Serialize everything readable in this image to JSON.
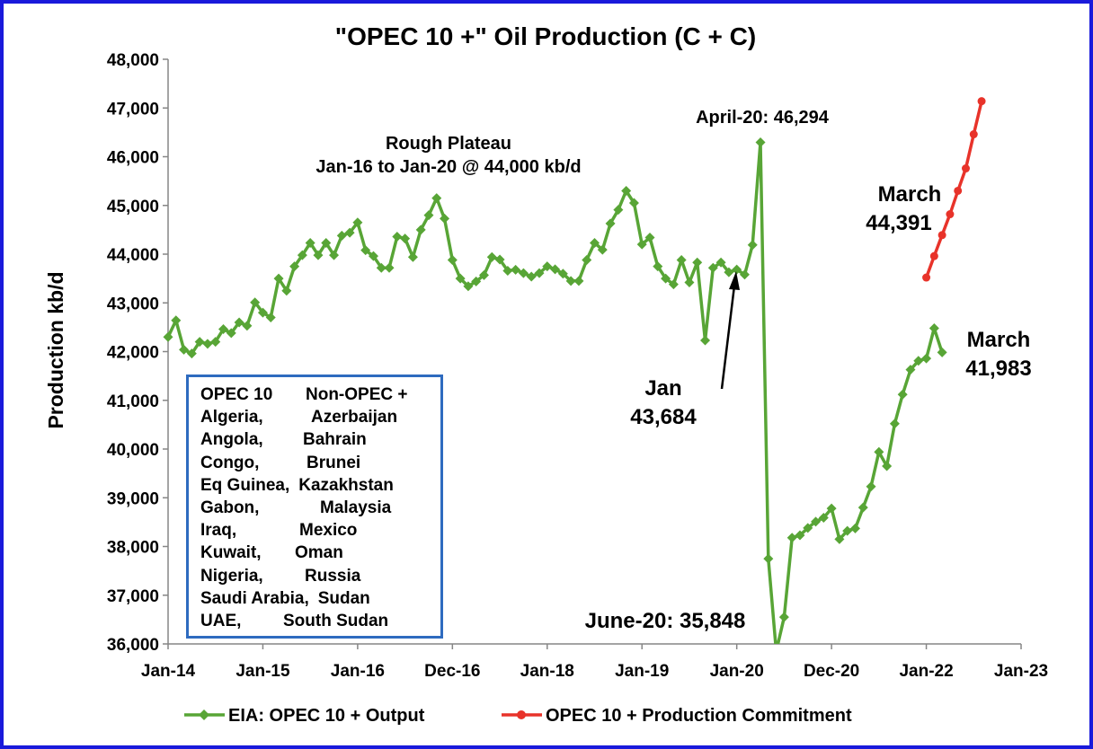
{
  "colors": {
    "frame": "#1a1adb",
    "output_series": "#58a536",
    "commitment_series": "#e8332a",
    "legend_border": "#2e6bbf"
  },
  "chart_data": {
    "type": "line",
    "title": "\"OPEC 10 +\" Oil Production (C + C)",
    "ylabel": "Production kb/d",
    "xlabel": "",
    "ylim": [
      36000,
      48000
    ],
    "yticks": [
      "36,000",
      "37,000",
      "38,000",
      "39,000",
      "40,000",
      "41,000",
      "42,000",
      "43,000",
      "44,000",
      "45,000",
      "46,000",
      "47,000",
      "48,000"
    ],
    "xticks": [
      "Jan-14",
      "Jan-15",
      "Jan-16",
      "Dec-16",
      "Jan-18",
      "Jan-19",
      "Jan-20",
      "Dec-20",
      "Jan-22",
      "Jan-23"
    ],
    "grid": false,
    "legend_position": "bottom",
    "series": [
      {
        "name": "EIA: OPEC 10 + Output",
        "marker": "diamond",
        "start": "Jan-14",
        "values": [
          42300,
          42640,
          42040,
          41960,
          42200,
          42160,
          42200,
          42460,
          42380,
          42600,
          42530,
          43010,
          42800,
          42700,
          43500,
          43250,
          43750,
          43980,
          44230,
          43980,
          44230,
          43980,
          44380,
          44440,
          44650,
          44080,
          43960,
          43720,
          43720,
          44360,
          44320,
          43940,
          44500,
          44800,
          45150,
          44730,
          43880,
          43500,
          43340,
          43440,
          43570,
          43940,
          43890,
          43660,
          43680,
          43610,
          43540,
          43610,
          43750,
          43690,
          43600,
          43450,
          43450,
          43880,
          44230,
          44090,
          44630,
          44910,
          45300,
          45050,
          44200,
          44340,
          43750,
          43500,
          43380,
          43880,
          43420,
          43830,
          42230,
          43720,
          43830,
          43630,
          43684,
          43580,
          44190,
          46294,
          37750,
          35848,
          36550,
          38180,
          38230,
          38380,
          38510,
          38590,
          38780,
          38150,
          38320,
          38370,
          38800,
          39230,
          39940,
          39650,
          40520,
          41120,
          41630,
          41810,
          41860,
          42480,
          41983
        ]
      },
      {
        "name": "OPEC 10 + Production Commitment",
        "marker": "circle",
        "start": "Jan-22",
        "values": [
          43520,
          43960,
          44391,
          44820,
          45300,
          45760,
          46460,
          47140
        ]
      }
    ],
    "annotations": {
      "plateau_line1": "Rough Plateau",
      "plateau_line2": "Jan-16 to Jan-20 @ 44,000 kb/d",
      "peak": "April-20: 46,294",
      "trough": "June-20: 35,848",
      "jan_label": "Jan",
      "jan_value": "43,684",
      "march_commit_label": "March",
      "march_commit_value": "44,391",
      "march_output_label": "March",
      "march_output_value": "41,983"
    }
  },
  "country_box": {
    "header_opec": "OPEC 10",
    "header_nonopec": "Non-OPEC +",
    "opec": [
      "Algeria,",
      "Angola,",
      "Congo,",
      "Eq Guinea,",
      "Gabon,",
      "Iraq,",
      "Kuwait,",
      "Nigeria,",
      "Saudi Arabia,",
      "UAE,"
    ],
    "nonopec": [
      "Azerbaijan",
      "Bahrain",
      "Brunei",
      "Kazakhstan",
      "Malaysia",
      "Mexico",
      "Oman",
      "Russia",
      "Sudan",
      "South Sudan"
    ]
  }
}
